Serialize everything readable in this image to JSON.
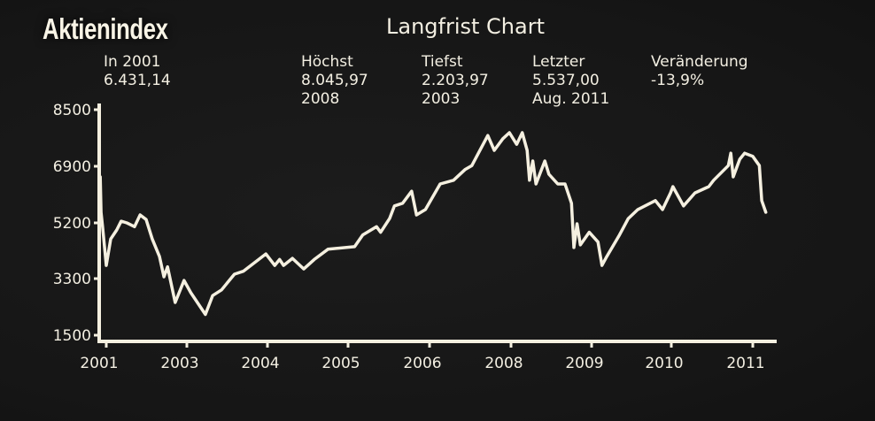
{
  "header": {
    "title": "Aktienindex",
    "subtitle": "Langfrist Chart"
  },
  "stats": [
    {
      "label": "In 2001",
      "value": "6.431,14",
      "note": ""
    },
    {
      "label": "Höchst",
      "value": "8.045,97",
      "note": "2008"
    },
    {
      "label": "Tiefst",
      "value": "2.203,97",
      "note": "2003"
    },
    {
      "label": "Letzter",
      "value": "5.537,00",
      "note": "Aug. 2011"
    },
    {
      "label": "Veränderung",
      "value": "-13,9%",
      "note": ""
    }
  ],
  "colors": {
    "line": "#f5f0e0",
    "background": "#181818",
    "text": "#f3efe2"
  },
  "chart_data": {
    "type": "line",
    "title": "Langfrist Chart",
    "xlabel": "",
    "ylabel": "",
    "grid": false,
    "yticks": [
      8500,
      6900,
      5200,
      3300,
      1500
    ],
    "xticks": [
      "2001",
      "2003",
      "2004",
      "2005",
      "2006",
      "2008",
      "2009",
      "2010",
      "2011"
    ],
    "xtick_years": [
      2001,
      2003,
      2004,
      2005,
      2006,
      2008,
      2009,
      2010,
      2011
    ],
    "ylim": [
      1500,
      8500
    ],
    "series": [
      {
        "x": [
          2000.85,
          2000.87,
          2000.91,
          2001.0,
          2001.11,
          2001.26,
          2001.37,
          2001.51,
          2001.7,
          2001.84,
          2001.99,
          2002.14,
          2002.32,
          2002.43,
          2002.52,
          2002.71,
          2002.93,
          2003.05,
          2003.23,
          2003.32,
          2003.43,
          2003.59,
          2003.7,
          2003.98,
          2004.09,
          2004.15,
          2004.2,
          2004.31,
          2004.45,
          2004.58,
          2004.75,
          2005.08,
          2005.18,
          2005.35,
          2005.4,
          2005.51,
          2005.57,
          2005.67,
          2005.78,
          2005.84,
          2005.95,
          2006.26,
          2006.59,
          2006.87,
          2007.04,
          2007.2,
          2007.43,
          2007.59,
          2007.8,
          2007.96,
          2008.07,
          2008.14,
          2008.2,
          2008.23,
          2008.27,
          2008.31,
          2008.42,
          2008.47,
          2008.58,
          2008.67,
          2008.75,
          2008.78,
          2008.82,
          2008.86,
          2008.97,
          2009.08,
          2009.13,
          2009.19,
          2009.35,
          2009.46,
          2009.58,
          2009.8,
          2009.89,
          2009.99,
          2010.02,
          2010.15,
          2010.29,
          2010.46,
          2010.52,
          2010.7,
          2010.73,
          2010.76,
          2010.84,
          2010.9,
          2011.0,
          2011.08,
          2011.11,
          2011.16
        ],
        "values": [
          6580,
          5520,
          5050,
          3750,
          4650,
          4960,
          5250,
          5200,
          5070,
          5440,
          5300,
          4650,
          4050,
          3360,
          3700,
          2540,
          3240,
          2850,
          2160,
          2760,
          2940,
          3450,
          3550,
          4140,
          3750,
          3950,
          3750,
          3990,
          3630,
          3950,
          4300,
          4390,
          4790,
          5070,
          4880,
          5330,
          5710,
          5790,
          6150,
          5440,
          5600,
          6370,
          6480,
          6800,
          6920,
          7270,
          7770,
          7350,
          7680,
          7850,
          7520,
          7850,
          7350,
          6480,
          7050,
          6370,
          7050,
          6660,
          6370,
          6370,
          5790,
          4360,
          5170,
          4450,
          4880,
          4550,
          3750,
          4050,
          4790,
          5330,
          5600,
          5870,
          5600,
          6100,
          6290,
          5710,
          6100,
          6290,
          6480,
          6920,
          7270,
          6580,
          7100,
          7270,
          7180,
          6920,
          5870,
          5520
        ]
      }
    ]
  }
}
